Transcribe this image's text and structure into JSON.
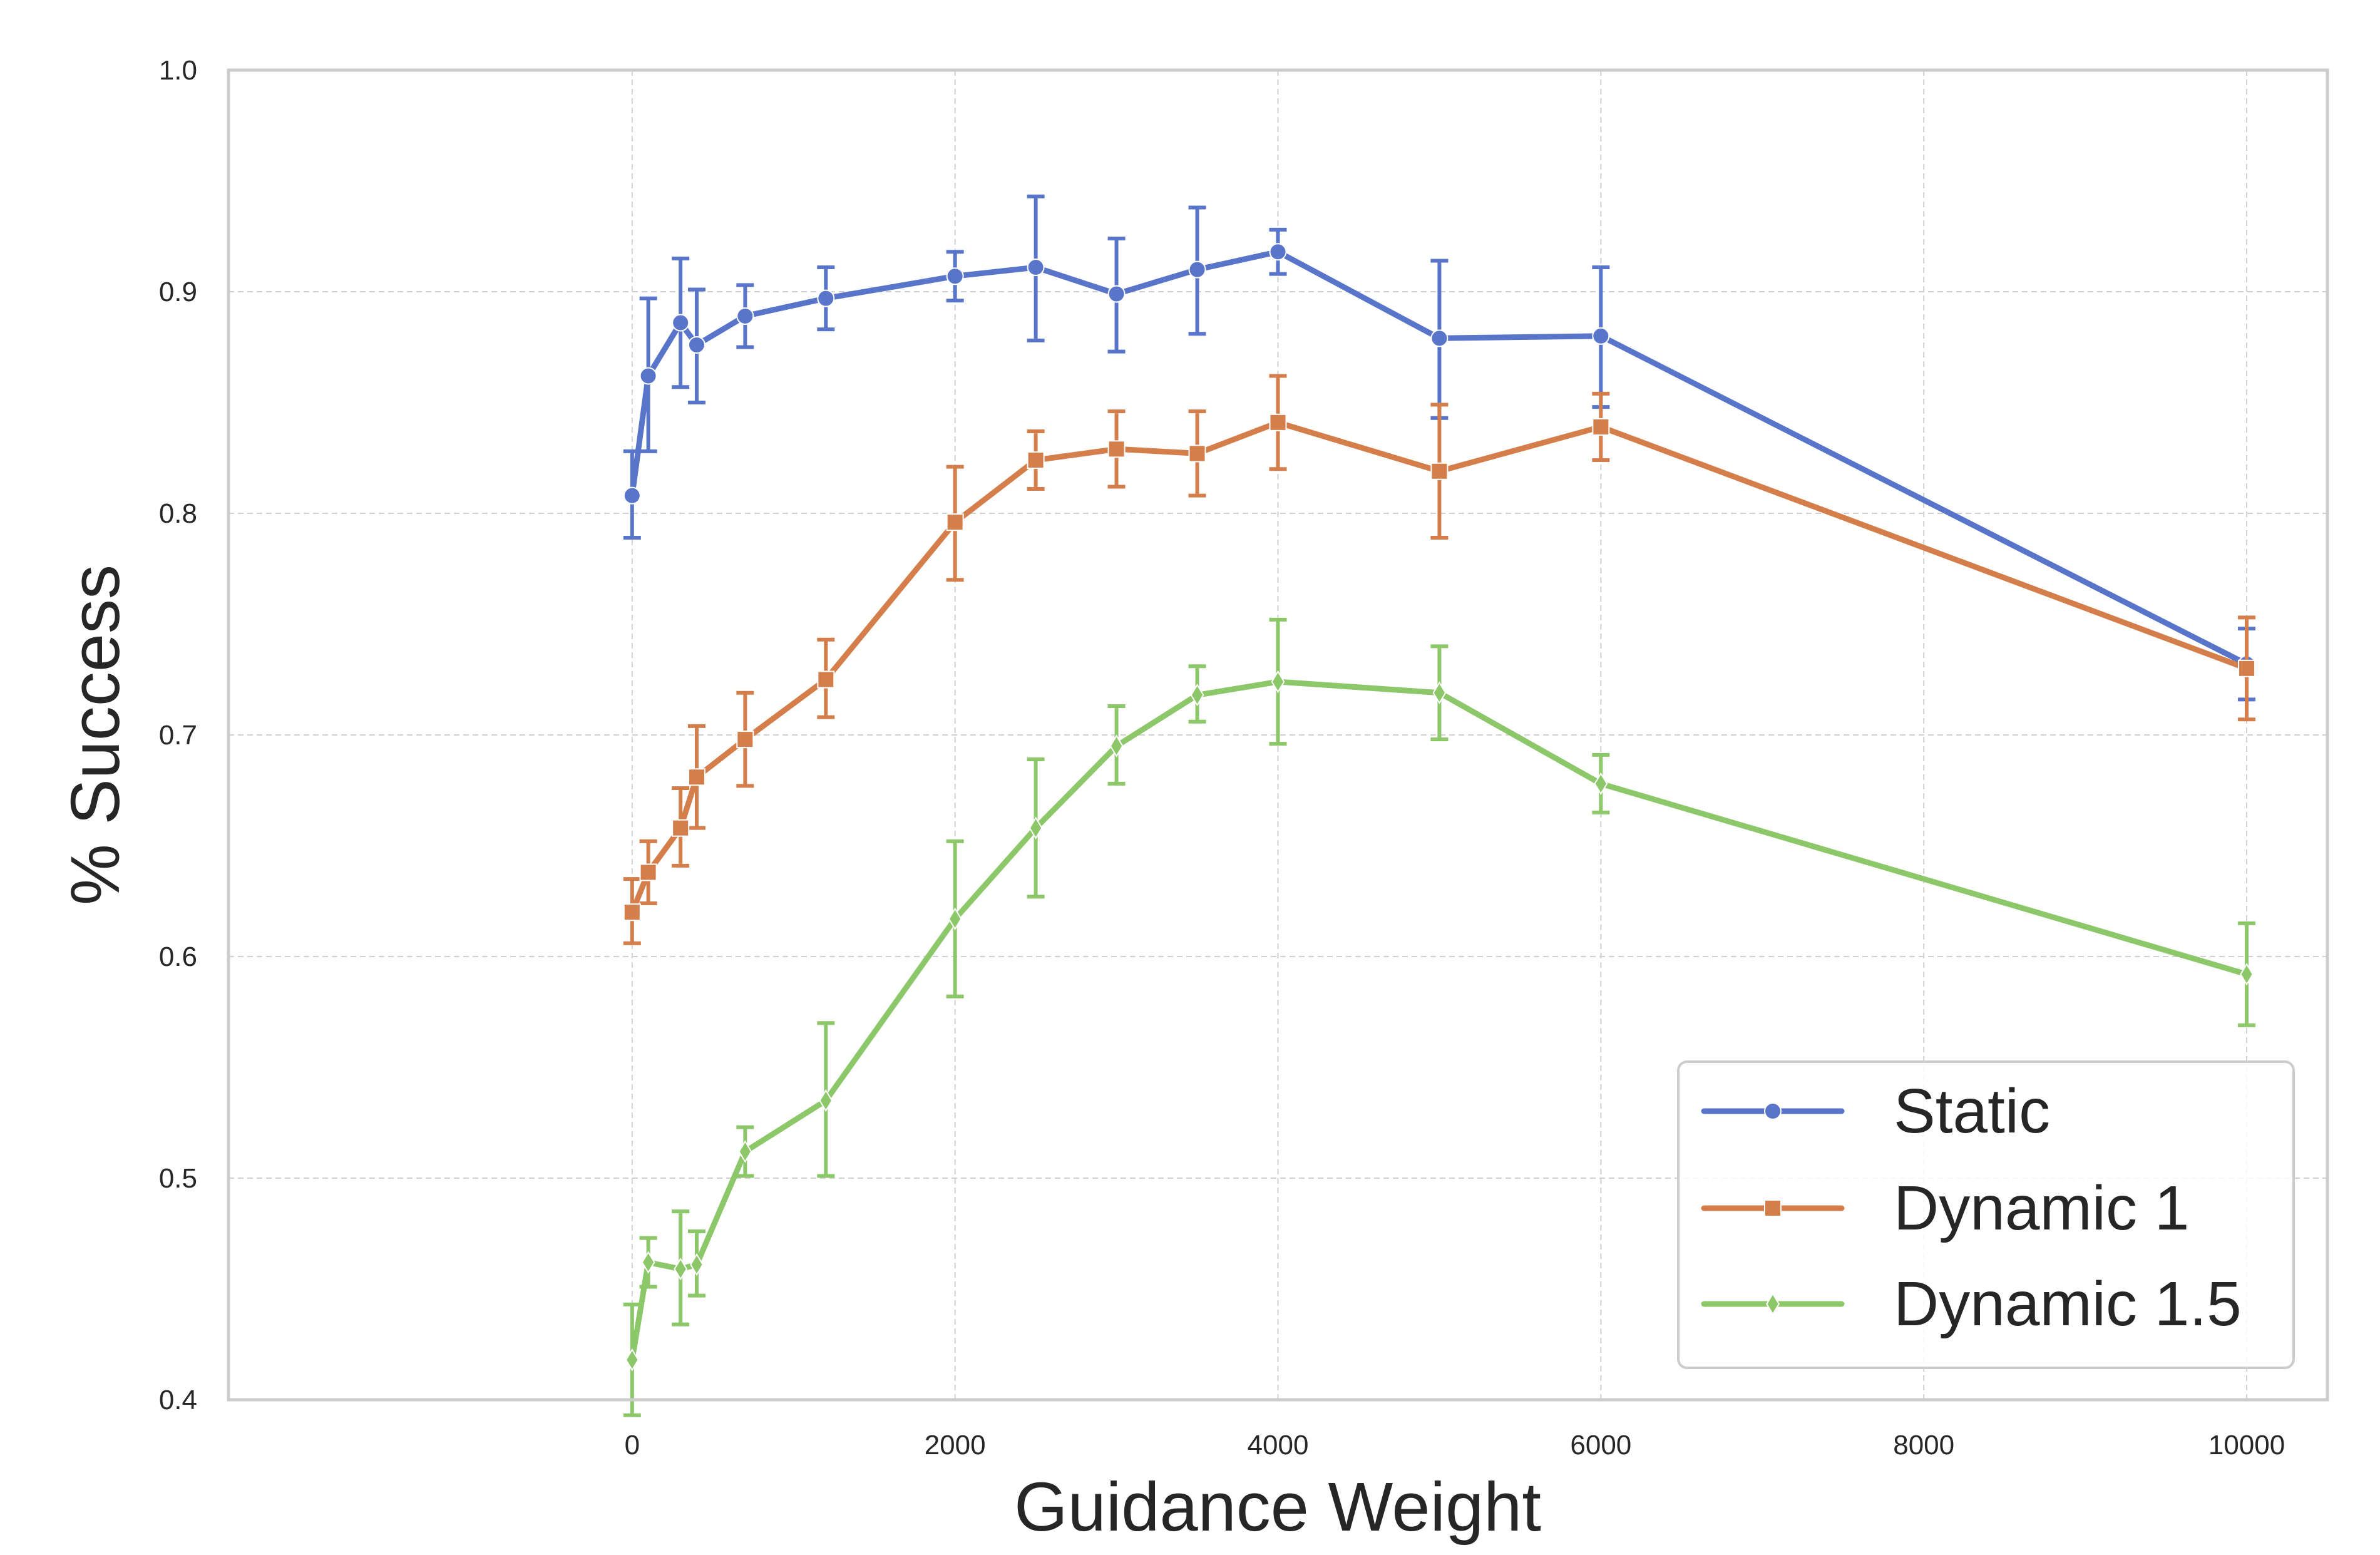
{
  "chart_data": {
    "type": "line",
    "title": "",
    "xlabel": "Guidance Weight",
    "ylabel": "% Success",
    "xlim": [
      -2500,
      10500
    ],
    "ylim": [
      0.4,
      1.0
    ],
    "xticks": [
      "0",
      "2000",
      "4000",
      "6000",
      "8000",
      "10000"
    ],
    "yticks": [
      "0.4",
      "0.5",
      "0.6",
      "0.7",
      "0.8",
      "0.9",
      "1.0"
    ],
    "grid": true,
    "legend_position": "lower-right",
    "x": [
      0,
      100,
      300,
      400,
      700,
      1200,
      2000,
      2500,
      3000,
      3500,
      4000,
      5000,
      6000,
      10000
    ],
    "series": [
      {
        "name": "Static",
        "color": "#5975c9",
        "marker": "circle",
        "values": [
          0.808,
          0.862,
          0.886,
          0.876,
          0.889,
          0.897,
          0.907,
          0.911,
          0.899,
          0.91,
          0.918,
          0.879,
          0.88,
          0.732
        ],
        "err_low": [
          0.789,
          0.828,
          0.857,
          0.85,
          0.875,
          0.883,
          0.896,
          0.878,
          0.873,
          0.881,
          0.908,
          0.843,
          0.848,
          0.716
        ],
        "err_high": [
          0.828,
          0.897,
          0.915,
          0.901,
          0.903,
          0.911,
          0.918,
          0.943,
          0.924,
          0.938,
          0.928,
          0.914,
          0.911,
          0.748
        ]
      },
      {
        "name": "Dynamic 1",
        "color": "#d47f4b",
        "marker": "square",
        "values": [
          0.62,
          0.638,
          0.658,
          0.681,
          0.698,
          0.725,
          0.796,
          0.824,
          0.829,
          0.827,
          0.841,
          0.819,
          0.839,
          0.73
        ],
        "err_low": [
          0.606,
          0.624,
          0.641,
          0.658,
          0.677,
          0.708,
          0.77,
          0.811,
          0.812,
          0.808,
          0.82,
          0.789,
          0.824,
          0.707
        ],
        "err_high": [
          0.635,
          0.652,
          0.676,
          0.704,
          0.719,
          0.743,
          0.821,
          0.837,
          0.846,
          0.846,
          0.862,
          0.849,
          0.854,
          0.753
        ]
      },
      {
        "name": "Dynamic 1.5",
        "color": "#8cc76a",
        "marker": "diamond",
        "values": [
          0.418,
          0.462,
          0.459,
          0.461,
          0.512,
          0.535,
          0.617,
          0.658,
          0.695,
          0.718,
          0.724,
          0.719,
          0.678,
          0.592
        ],
        "err_low": [
          0.393,
          0.451,
          0.434,
          0.447,
          0.501,
          0.501,
          0.582,
          0.627,
          0.678,
          0.706,
          0.696,
          0.698,
          0.665,
          0.569
        ],
        "err_high": [
          0.443,
          0.473,
          0.485,
          0.476,
          0.523,
          0.57,
          0.652,
          0.689,
          0.713,
          0.731,
          0.752,
          0.74,
          0.691,
          0.615
        ]
      }
    ]
  }
}
